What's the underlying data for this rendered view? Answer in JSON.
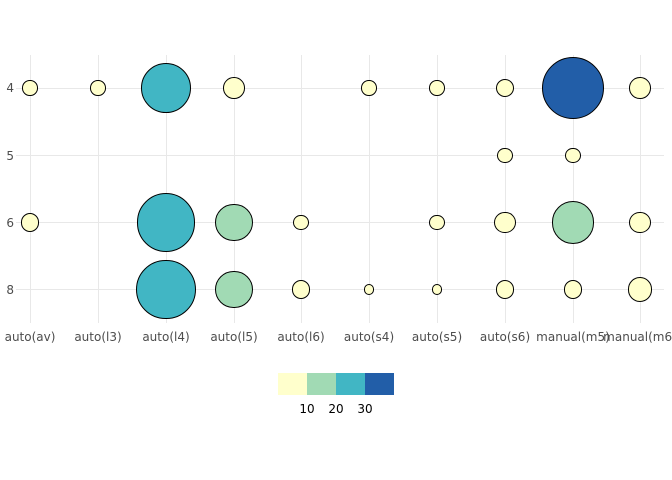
{
  "chart_data": {
    "type": "scatter",
    "subtype": "count-bubble",
    "title": "",
    "xlabel": "",
    "ylabel": "",
    "x_categories": [
      "auto(av)",
      "auto(l3)",
      "auto(l4)",
      "auto(l5)",
      "auto(l6)",
      "auto(s4)",
      "auto(s5)",
      "auto(s6)",
      "manual(m5)",
      "manual(m6)"
    ],
    "y_categories": [
      "4",
      "5",
      "6",
      "8"
    ],
    "points": [
      {
        "x": "auto(av)",
        "y": "4",
        "n": 2
      },
      {
        "x": "auto(l3)",
        "y": "4",
        "n": 2
      },
      {
        "x": "auto(l4)",
        "y": "4",
        "n": 21
      },
      {
        "x": "auto(l5)",
        "y": "4",
        "n": 4
      },
      {
        "x": "auto(s4)",
        "y": "4",
        "n": 2
      },
      {
        "x": "auto(s5)",
        "y": "4",
        "n": 2
      },
      {
        "x": "auto(s6)",
        "y": "4",
        "n": 3
      },
      {
        "x": "manual(m5)",
        "y": "4",
        "n": 33
      },
      {
        "x": "manual(m6)",
        "y": "4",
        "n": 4
      },
      {
        "x": "auto(s6)",
        "y": "5",
        "n": 2
      },
      {
        "x": "manual(m5)",
        "y": "5",
        "n": 2
      },
      {
        "x": "auto(av)",
        "y": "6",
        "n": 3
      },
      {
        "x": "auto(l4)",
        "y": "6",
        "n": 29
      },
      {
        "x": "auto(l5)",
        "y": "6",
        "n": 12
      },
      {
        "x": "auto(l6)",
        "y": "6",
        "n": 2
      },
      {
        "x": "auto(s5)",
        "y": "6",
        "n": 2
      },
      {
        "x": "auto(s6)",
        "y": "6",
        "n": 4
      },
      {
        "x": "manual(m5)",
        "y": "6",
        "n": 15
      },
      {
        "x": "manual(m6)",
        "y": "6",
        "n": 4
      },
      {
        "x": "auto(l4)",
        "y": "8",
        "n": 30
      },
      {
        "x": "auto(l5)",
        "y": "8",
        "n": 12
      },
      {
        "x": "auto(l6)",
        "y": "8",
        "n": 3
      },
      {
        "x": "auto(s4)",
        "y": "8",
        "n": 1
      },
      {
        "x": "auto(s5)",
        "y": "8",
        "n": 1
      },
      {
        "x": "auto(s6)",
        "y": "8",
        "n": 3
      },
      {
        "x": "manual(m5)",
        "y": "8",
        "n": 3
      },
      {
        "x": "manual(m6)",
        "y": "8",
        "n": 5
      }
    ],
    "size_encoding": "circle area proportional to n",
    "color_bins": {
      "breaks": [
        10,
        20,
        30
      ],
      "colors": [
        "#FFFFCC",
        "#A1DAB4",
        "#41B6C4",
        "#225EA8"
      ]
    },
    "legend": {
      "position": "bottom",
      "labels": [
        "10",
        "20",
        "30"
      ]
    },
    "grid": true,
    "point_outline_color": "#000000"
  },
  "colors": {
    "background": "#FFFFFF",
    "gridline": "#E8E8E8",
    "axis_text": "#4D4D4D",
    "legend_text": "#000000"
  }
}
